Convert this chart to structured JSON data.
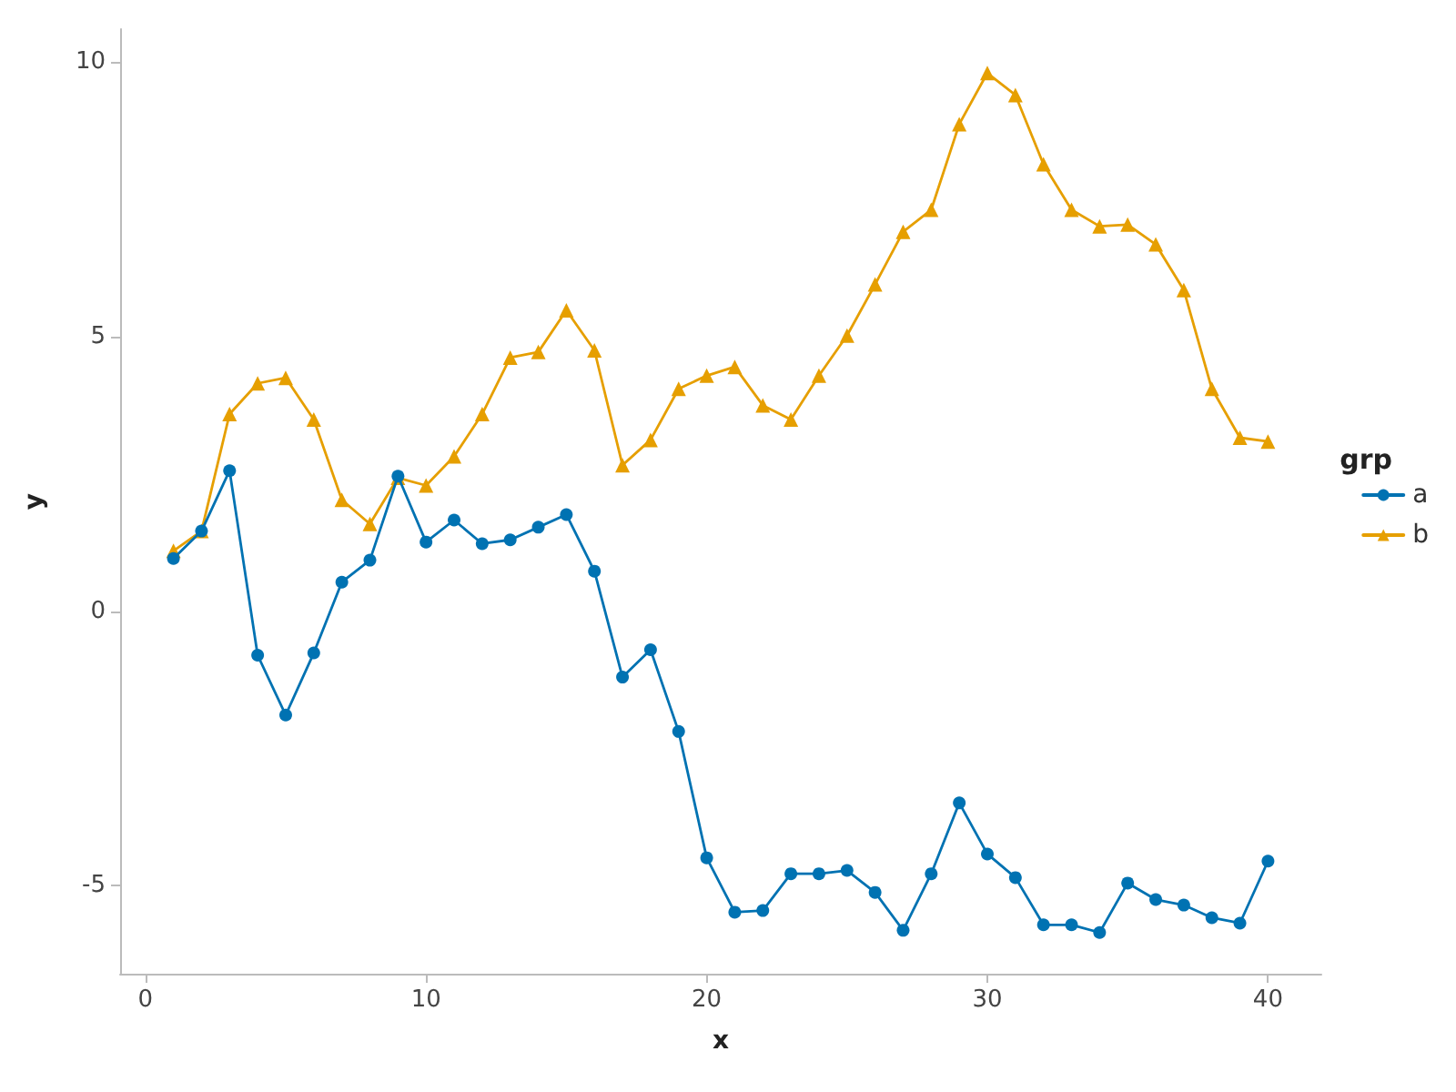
{
  "chart_data": {
    "type": "line",
    "xlabel": "x",
    "ylabel": "y",
    "legend_title": "grp",
    "legend": "right",
    "grid": false,
    "x": [
      1,
      2,
      3,
      4,
      5,
      6,
      7,
      8,
      9,
      10,
      11,
      12,
      13,
      14,
      15,
      16,
      17,
      18,
      19,
      20,
      21,
      22,
      23,
      24,
      25,
      26,
      27,
      28,
      29,
      30,
      31,
      32,
      33,
      34,
      35,
      36,
      37,
      38,
      39,
      40
    ],
    "xlim": [
      -0.9,
      41.9
    ],
    "xticks": [
      0,
      10,
      20,
      30,
      40
    ],
    "ylim": [
      -6.6,
      10.6
    ],
    "yticks": [
      -5,
      0,
      5,
      10
    ],
    "series": [
      {
        "name": "a",
        "color": "#0072b2",
        "marker": "circle",
        "values": [
          0.96,
          1.46,
          2.56,
          -0.8,
          -1.89,
          -0.76,
          0.53,
          0.93,
          2.46,
          1.26,
          1.66,
          1.23,
          1.3,
          1.53,
          1.76,
          0.73,
          -1.2,
          -0.7,
          -2.19,
          -4.49,
          -5.48,
          -5.45,
          -4.78,
          -4.78,
          -4.72,
          -5.12,
          -5.81,
          -4.78,
          -3.49,
          -4.42,
          -4.85,
          -5.71,
          -5.71,
          -5.85,
          -4.95,
          -5.25,
          -5.35,
          -5.58,
          -5.68,
          -4.55
        ]
      },
      {
        "name": "b",
        "color": "#e69f00",
        "marker": "triangle",
        "values": [
          1.1,
          1.46,
          3.59,
          4.15,
          4.25,
          3.49,
          2.03,
          1.59,
          2.43,
          2.29,
          2.82,
          3.59,
          4.62,
          4.72,
          5.48,
          4.75,
          2.66,
          3.12,
          4.05,
          4.29,
          4.45,
          3.75,
          3.49,
          4.29,
          5.02,
          5.95,
          6.91,
          7.31,
          8.87,
          9.8,
          9.4,
          8.14,
          7.31,
          7.01,
          7.04,
          6.68,
          5.85,
          4.05,
          3.16,
          3.09
        ]
      }
    ]
  }
}
